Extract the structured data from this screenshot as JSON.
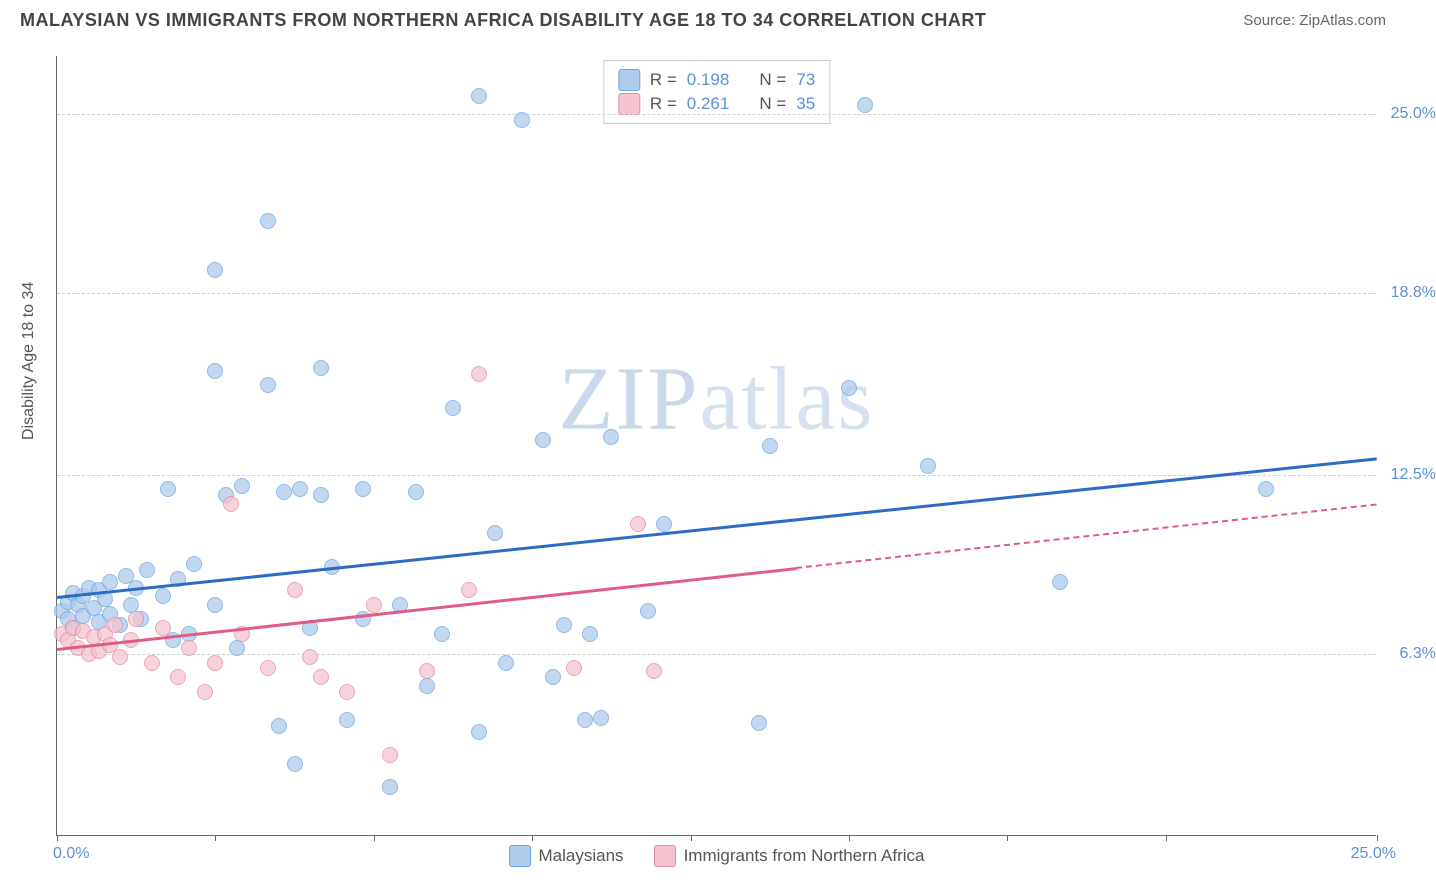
{
  "header": {
    "title": "MALAYSIAN VS IMMIGRANTS FROM NORTHERN AFRICA DISABILITY AGE 18 TO 34 CORRELATION CHART",
    "source_prefix": "Source: ",
    "source_name": "ZipAtlas.com"
  },
  "chart": {
    "type": "scatter",
    "ylabel": "Disability Age 18 to 34",
    "xlim": [
      0,
      25
    ],
    "ylim": [
      0,
      27
    ],
    "x_ticks": [
      0,
      3,
      6,
      9,
      12,
      15,
      18,
      21,
      25
    ],
    "x_tick_labels_shown": {
      "0": "0.0%",
      "25": "25.0%"
    },
    "y_gridlines": [
      6.3,
      12.5,
      18.8,
      25.0
    ],
    "y_tick_labels": [
      "6.3%",
      "12.5%",
      "18.8%",
      "25.0%"
    ],
    "background_color": "#ffffff",
    "grid_color": "#d0d0d0",
    "axis_color": "#666666",
    "tick_label_color": "#5b8fd6",
    "label_fontsize": 16,
    "watermark": "ZIPatlas",
    "series": [
      {
        "name": "Malaysians",
        "color_fill": "#aecbeb",
        "color_stroke": "#6fa3dd",
        "trend_color": "#2d6bc4",
        "R": 0.198,
        "N": 73,
        "trend": {
          "x1": 0,
          "y1": 8.3,
          "x2": 25,
          "y2": 13.1
        },
        "points": [
          [
            0.1,
            7.8
          ],
          [
            0.2,
            8.1
          ],
          [
            0.2,
            7.5
          ],
          [
            0.3,
            8.4
          ],
          [
            0.3,
            7.2
          ],
          [
            0.4,
            8.0
          ],
          [
            0.5,
            7.6
          ],
          [
            0.5,
            8.3
          ],
          [
            0.6,
            8.6
          ],
          [
            0.7,
            7.9
          ],
          [
            0.8,
            8.5
          ],
          [
            0.8,
            7.4
          ],
          [
            0.9,
            8.2
          ],
          [
            1.0,
            8.8
          ],
          [
            1.0,
            7.7
          ],
          [
            1.2,
            7.3
          ],
          [
            1.3,
            9.0
          ],
          [
            1.4,
            8.0
          ],
          [
            1.5,
            8.6
          ],
          [
            1.6,
            7.5
          ],
          [
            1.7,
            9.2
          ],
          [
            2.0,
            8.3
          ],
          [
            2.1,
            12.0
          ],
          [
            2.2,
            6.8
          ],
          [
            2.3,
            8.9
          ],
          [
            2.5,
            7.0
          ],
          [
            2.6,
            9.4
          ],
          [
            3.0,
            16.1
          ],
          [
            3.0,
            8.0
          ],
          [
            3.0,
            19.6
          ],
          [
            3.2,
            11.8
          ],
          [
            3.4,
            6.5
          ],
          [
            3.5,
            12.1
          ],
          [
            4.0,
            21.3
          ],
          [
            4.0,
            15.6
          ],
          [
            4.2,
            3.8
          ],
          [
            4.3,
            11.9
          ],
          [
            4.5,
            2.5
          ],
          [
            4.6,
            12.0
          ],
          [
            4.8,
            7.2
          ],
          [
            5.0,
            11.8
          ],
          [
            5.0,
            16.2
          ],
          [
            5.2,
            9.3
          ],
          [
            5.5,
            4.0
          ],
          [
            5.8,
            7.5
          ],
          [
            5.8,
            12.0
          ],
          [
            6.3,
            1.7
          ],
          [
            6.5,
            8.0
          ],
          [
            6.8,
            11.9
          ],
          [
            7.0,
            5.2
          ],
          [
            7.3,
            7.0
          ],
          [
            7.5,
            14.8
          ],
          [
            8.0,
            25.6
          ],
          [
            8.0,
            3.6
          ],
          [
            8.3,
            10.5
          ],
          [
            8.5,
            6.0
          ],
          [
            8.8,
            24.8
          ],
          [
            9.2,
            13.7
          ],
          [
            9.4,
            5.5
          ],
          [
            9.6,
            7.3
          ],
          [
            10.0,
            4.0
          ],
          [
            10.1,
            7.0
          ],
          [
            10.3,
            4.1
          ],
          [
            10.5,
            13.8
          ],
          [
            11.2,
            7.8
          ],
          [
            11.5,
            10.8
          ],
          [
            13.3,
            3.9
          ],
          [
            13.5,
            13.5
          ],
          [
            15.0,
            15.5
          ],
          [
            15.3,
            25.3
          ],
          [
            16.5,
            12.8
          ],
          [
            19.0,
            8.8
          ],
          [
            22.9,
            12.0
          ]
        ]
      },
      {
        "name": "Immigrants from Northern Africa",
        "color_fill": "#f4c4cf",
        "color_stroke": "#e48ba3",
        "trend_color": "#e05c87",
        "R": 0.261,
        "N": 35,
        "trend": {
          "x1": 0,
          "y1": 6.5,
          "x2": 14,
          "y2": 9.3,
          "x2_dash": 25,
          "y2_dash": 11.5
        },
        "points": [
          [
            0.1,
            7.0
          ],
          [
            0.2,
            6.8
          ],
          [
            0.3,
            7.2
          ],
          [
            0.4,
            6.5
          ],
          [
            0.5,
            7.1
          ],
          [
            0.6,
            6.3
          ],
          [
            0.7,
            6.9
          ],
          [
            0.8,
            6.4
          ],
          [
            0.9,
            7.0
          ],
          [
            1.0,
            6.6
          ],
          [
            1.1,
            7.3
          ],
          [
            1.2,
            6.2
          ],
          [
            1.4,
            6.8
          ],
          [
            1.5,
            7.5
          ],
          [
            1.8,
            6.0
          ],
          [
            2.0,
            7.2
          ],
          [
            2.3,
            5.5
          ],
          [
            2.5,
            6.5
          ],
          [
            2.8,
            5.0
          ],
          [
            3.0,
            6.0
          ],
          [
            3.3,
            11.5
          ],
          [
            3.5,
            7.0
          ],
          [
            4.0,
            5.8
          ],
          [
            4.5,
            8.5
          ],
          [
            4.8,
            6.2
          ],
          [
            5.0,
            5.5
          ],
          [
            5.5,
            5.0
          ],
          [
            6.0,
            8.0
          ],
          [
            6.3,
            2.8
          ],
          [
            7.0,
            5.7
          ],
          [
            7.8,
            8.5
          ],
          [
            8.0,
            16.0
          ],
          [
            9.8,
            5.8
          ],
          [
            11.0,
            10.8
          ],
          [
            11.3,
            5.7
          ]
        ]
      }
    ],
    "legend_bottom": [
      {
        "label": "Malaysians",
        "fill": "#aecbeb",
        "stroke": "#6fa3dd"
      },
      {
        "label": "Immigrants from Northern Africa",
        "fill": "#f4c4cf",
        "stroke": "#e48ba3"
      }
    ]
  }
}
